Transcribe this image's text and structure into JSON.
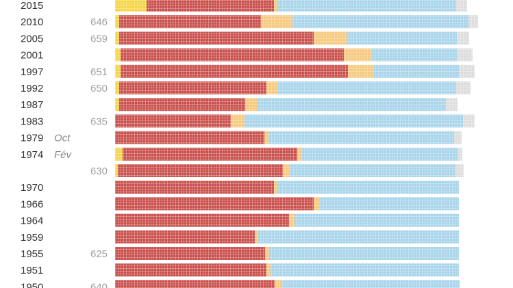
{
  "chart_data": {
    "type": "bar",
    "orientation": "horizontal",
    "stacked": true,
    "value_unit": "seats",
    "colors": {
      "yellow": "#f5d547",
      "red": "#c9504c",
      "orange": "#f6c97d",
      "blue": "#a8d4ea",
      "grey": "#dddddd",
      "grid": "#ffffff"
    },
    "rows": [
      {
        "label": "2015",
        "note": "",
        "total": "",
        "segments": [
          46,
          186,
          5,
          261,
          16
        ]
      },
      {
        "label": "2010",
        "note": "",
        "total": "646",
        "segments": [
          6,
          207,
          46,
          257,
          14
        ]
      },
      {
        "label": "2005",
        "note": "",
        "total": "659",
        "segments": [
          6,
          284,
          48,
          161,
          18
        ]
      },
      {
        "label": "2001",
        "note": "",
        "total": "",
        "segments": [
          8,
          326,
          41,
          124,
          23
        ]
      },
      {
        "label": "1997",
        "note": "",
        "total": "651",
        "segments": [
          8,
          332,
          38,
          124,
          23
        ]
      },
      {
        "label": "1992",
        "note": "",
        "total": "650",
        "segments": [
          6,
          215,
          17,
          260,
          21
        ]
      },
      {
        "label": "1987",
        "note": "",
        "total": "",
        "segments": [
          6,
          184,
          17,
          276,
          17
        ]
      },
      {
        "label": "1983",
        "note": "",
        "total": "635",
        "segments": [
          0,
          169,
          20,
          319,
          17
        ]
      },
      {
        "label": "1979",
        "note": "Oct",
        "total": "",
        "segments": [
          0,
          218,
          6,
          271,
          11
        ]
      },
      {
        "label": "1974",
        "note": "Fév",
        "total": "",
        "segments": [
          11,
          255,
          7,
          227,
          7
        ]
      },
      {
        "label": "",
        "note": "",
        "total": "630",
        "segments": [
          4,
          241,
          10,
          242,
          12
        ]
      },
      {
        "label": "1970",
        "note": "",
        "total": "",
        "segments": [
          0,
          232,
          5,
          265,
          0
        ]
      },
      {
        "label": "1966",
        "note": "",
        "total": "",
        "segments": [
          0,
          290,
          9,
          203,
          0
        ]
      },
      {
        "label": "1964",
        "note": "",
        "total": "",
        "segments": [
          0,
          254,
          8,
          240,
          0
        ]
      },
      {
        "label": "1959",
        "note": "",
        "total": "",
        "segments": [
          0,
          204,
          5,
          293,
          0
        ]
      },
      {
        "label": "1955",
        "note": "",
        "total": "625",
        "segments": [
          0,
          219,
          6,
          277,
          0
        ]
      },
      {
        "label": "1951",
        "note": "",
        "total": "",
        "segments": [
          0,
          221,
          6,
          275,
          0
        ]
      },
      {
        "label": "1950",
        "note": "",
        "total": "640",
        "segments": [
          0,
          233,
          9,
          261,
          0
        ]
      }
    ]
  }
}
